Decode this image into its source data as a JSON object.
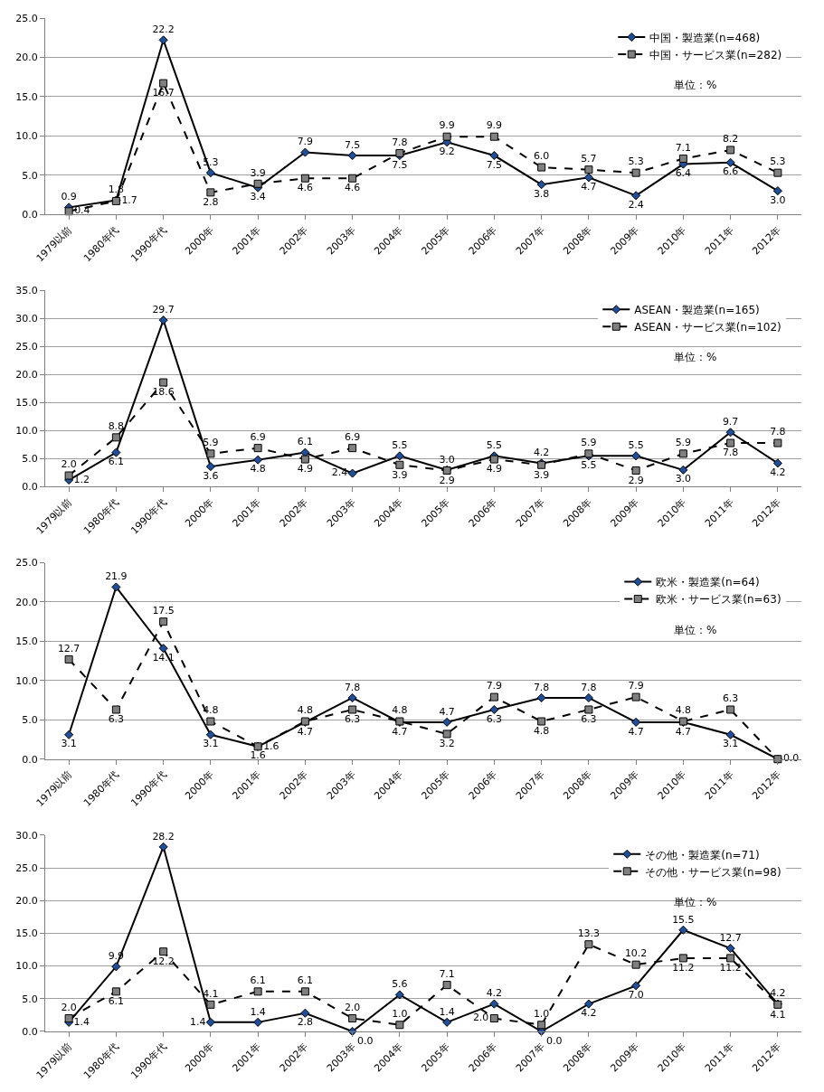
{
  "chart_data": [
    {
      "type": "line",
      "categories": [
        "1979以前",
        "1980年代",
        "1990年代",
        "2000年",
        "2001年",
        "2002年",
        "2003年",
        "2004年",
        "2005年",
        "2006年",
        "2007年",
        "2008年",
        "2009年",
        "2010年",
        "2011年",
        "2012年"
      ],
      "series": [
        {
          "name": "中国・製造業(n=468)",
          "color": "#000000",
          "marker": "diamond",
          "line_style": "solid",
          "values": [
            0.9,
            1.8,
            22.2,
            5.3,
            3.4,
            7.9,
            7.5,
            7.5,
            9.2,
            7.5,
            3.8,
            4.7,
            2.4,
            6.4,
            6.6,
            3.0
          ],
          "value_labels": [
            "0.9",
            "1.8",
            "22.2",
            "5.3",
            "3.4",
            "7.9",
            "7.5",
            "7.5",
            "9.2",
            "7.5",
            "3.8",
            "4.7",
            "2.4",
            "6.4",
            "6.6",
            "3.0"
          ]
        },
        {
          "name": "中国・サービス業(n=282)",
          "color": "#000000",
          "marker": "square",
          "line_style": "dashed",
          "values": [
            0.4,
            1.7,
            16.7,
            2.8,
            3.9,
            4.6,
            4.6,
            7.8,
            9.9,
            9.9,
            6.0,
            5.7,
            5.3,
            7.1,
            8.2,
            5.3
          ],
          "value_labels": [
            "0.4",
            "1.7",
            "16.7",
            "2.8",
            "3.9",
            "4.6",
            "4.6",
            "7.8",
            "9.9",
            "9.9",
            "6.0",
            "5.7",
            "5.3",
            "7.1",
            "8.2",
            "5.3"
          ]
        }
      ],
      "ylim": [
        0,
        25
      ],
      "yticks": [
        {
          "value": 0,
          "label": "0.0"
        },
        {
          "value": 5,
          "label": "5.0"
        },
        {
          "value": 10,
          "label": "10.0"
        },
        {
          "value": 15,
          "label": "15.0"
        },
        {
          "value": 20,
          "label": "20.0"
        },
        {
          "value": 25,
          "label": "25.0"
        }
      ],
      "grid": "y",
      "legend": "top right",
      "annotations": [
        "単位：%"
      ]
    },
    {
      "type": "line",
      "categories": [
        "1979以前",
        "1980年代",
        "1990年代",
        "2000年",
        "2001年",
        "2002年",
        "2003年",
        "2004年",
        "2005年",
        "2006年",
        "2007年",
        "2008年",
        "2009年",
        "2010年",
        "2011年",
        "2012年"
      ],
      "series": [
        {
          "name": "ASEAN・製造業(n=165)",
          "color": "#000000",
          "marker": "diamond",
          "line_style": "solid",
          "values": [
            1.2,
            6.1,
            29.7,
            3.6,
            4.8,
            6.1,
            2.4,
            5.5,
            3.0,
            5.5,
            4.2,
            5.5,
            5.5,
            3.0,
            9.7,
            4.2
          ],
          "value_labels": [
            "1.2",
            "6.1",
            "29.7",
            "3.6",
            "4.8",
            "6.1",
            "2.4",
            "5.5",
            "3.0",
            "5.5",
            "4.2",
            "5.5",
            "5.5",
            "3.0",
            "9.7",
            "4.2"
          ]
        },
        {
          "name": "ASEAN・サービス業(n=102)",
          "color": "#000000",
          "marker": "square",
          "line_style": "dashed",
          "values": [
            2.0,
            8.8,
            18.6,
            5.9,
            6.9,
            4.9,
            6.9,
            3.9,
            2.9,
            4.9,
            3.9,
            5.9,
            2.9,
            5.9,
            7.8,
            7.8
          ],
          "value_labels": [
            "2.0",
            "8.8",
            "18.6",
            "5.9",
            "6.9",
            "4.9",
            "6.9",
            "3.9",
            "2.9",
            "4.9",
            "3.9",
            "5.9",
            "2.9",
            "5.9",
            "7.8",
            "7.8"
          ]
        }
      ],
      "ylim": [
        0,
        35
      ],
      "yticks": [
        {
          "value": 0,
          "label": "0.0"
        },
        {
          "value": 5,
          "label": "5.0"
        },
        {
          "value": 10,
          "label": "10.0"
        },
        {
          "value": 15,
          "label": "15.0"
        },
        {
          "value": 20,
          "label": "20.0"
        },
        {
          "value": 25,
          "label": "25.0"
        },
        {
          "value": 30,
          "label": "30.0"
        },
        {
          "value": 35,
          "label": "35.0"
        }
      ],
      "grid": "y",
      "legend": "top right",
      "annotations": [
        "単位：%"
      ]
    },
    {
      "type": "line",
      "categories": [
        "1979以前",
        "1980年代",
        "1990年代",
        "2000年",
        "2001年",
        "2002年",
        "2003年",
        "2004年",
        "2005年",
        "2006年",
        "2007年",
        "2008年",
        "2009年",
        "2010年",
        "2011年",
        "2012年"
      ],
      "series": [
        {
          "name": "欧米・製造業(n=64)",
          "color": "#000000",
          "marker": "diamond",
          "line_style": "solid",
          "values": [
            3.1,
            21.9,
            14.1,
            3.1,
            1.6,
            4.7,
            7.8,
            4.7,
            4.7,
            6.3,
            7.8,
            7.8,
            4.7,
            4.7,
            3.1,
            0.0
          ],
          "value_labels": [
            "3.1",
            "21.9",
            "14.1",
            "3.1",
            "1.6",
            "4.7",
            "7.8",
            "4.7",
            "4.7",
            "6.3",
            "7.8",
            "7.8",
            "4.7",
            "4.7",
            "3.1",
            null
          ]
        },
        {
          "name": "欧米・サービス業(n=63)",
          "color": "#000000",
          "marker": "square",
          "line_style": "dashed",
          "values": [
            12.7,
            6.3,
            17.5,
            4.8,
            1.6,
            4.8,
            6.3,
            4.8,
            3.2,
            7.9,
            4.8,
            6.3,
            7.9,
            4.8,
            6.3,
            0.0
          ],
          "value_labels": [
            "12.7",
            "6.3",
            "17.5",
            "4.8",
            "1.6",
            "4.8",
            "6.3",
            "4.8",
            "3.2",
            "7.9",
            "4.8",
            "6.3",
            "7.9",
            "4.8",
            "6.3",
            "0.0"
          ]
        }
      ],
      "ylim": [
        0,
        25
      ],
      "yticks": [
        {
          "value": 0,
          "label": "0.0"
        },
        {
          "value": 5,
          "label": "5.0"
        },
        {
          "value": 10,
          "label": "10.0"
        },
        {
          "value": 15,
          "label": "15.0"
        },
        {
          "value": 20,
          "label": "20.0"
        },
        {
          "value": 25,
          "label": "25.0"
        }
      ],
      "grid": "y",
      "legend": "top right",
      "annotations": [
        "単位：%"
      ]
    },
    {
      "type": "line",
      "categories": [
        "1979以前",
        "1980年代",
        "1990年代",
        "2000年",
        "2001年",
        "2002年",
        "2003年",
        "2004年",
        "2005年",
        "2006年",
        "2007年",
        "2008年",
        "2009年",
        "2010年",
        "2011年",
        "2012年"
      ],
      "series": [
        {
          "name": "その他・製造業(n=71)",
          "color": "#000000",
          "marker": "diamond",
          "line_style": "solid",
          "values": [
            1.4,
            9.9,
            28.2,
            1.4,
            1.4,
            2.8,
            0.0,
            5.6,
            1.4,
            4.2,
            0.0,
            4.2,
            7.0,
            15.5,
            12.7,
            4.2
          ],
          "value_labels": [
            "1.4",
            "9.9",
            "28.2",
            "1.4",
            "1.4",
            "2.8",
            "0.0",
            "5.6",
            "1.4",
            "4.2",
            "0.0",
            "4.2",
            "7.0",
            "15.5",
            "12.7",
            "4.2"
          ]
        },
        {
          "name": "その他・サービス業(n=98)",
          "color": "#000000",
          "marker": "square",
          "line_style": "dashed",
          "values": [
            2.0,
            6.1,
            12.2,
            4.1,
            6.1,
            6.1,
            2.0,
            1.0,
            7.1,
            2.0,
            1.0,
            13.3,
            10.2,
            11.2,
            11.2,
            4.1
          ],
          "value_labels": [
            "2.0",
            "6.1",
            "12.2",
            "4.1",
            "6.1",
            "6.1",
            "2.0",
            "1.0",
            "7.1",
            "2.0",
            "1.0",
            "13.3",
            "10.2",
            "11.2",
            "11.2",
            "4.1"
          ]
        }
      ],
      "ylim": [
        0,
        30
      ],
      "yticks": [
        {
          "value": 0,
          "label": "0.0"
        },
        {
          "value": 5,
          "label": "5.0"
        },
        {
          "value": 10,
          "label": "10.0"
        },
        {
          "value": 15,
          "label": "15.0"
        },
        {
          "value": 20,
          "label": "20.0"
        },
        {
          "value": 25,
          "label": "25.0"
        },
        {
          "value": 30,
          "label": "30.0"
        }
      ],
      "grid": "y",
      "legend": "top right",
      "annotations": [
        "単位：%"
      ]
    }
  ]
}
